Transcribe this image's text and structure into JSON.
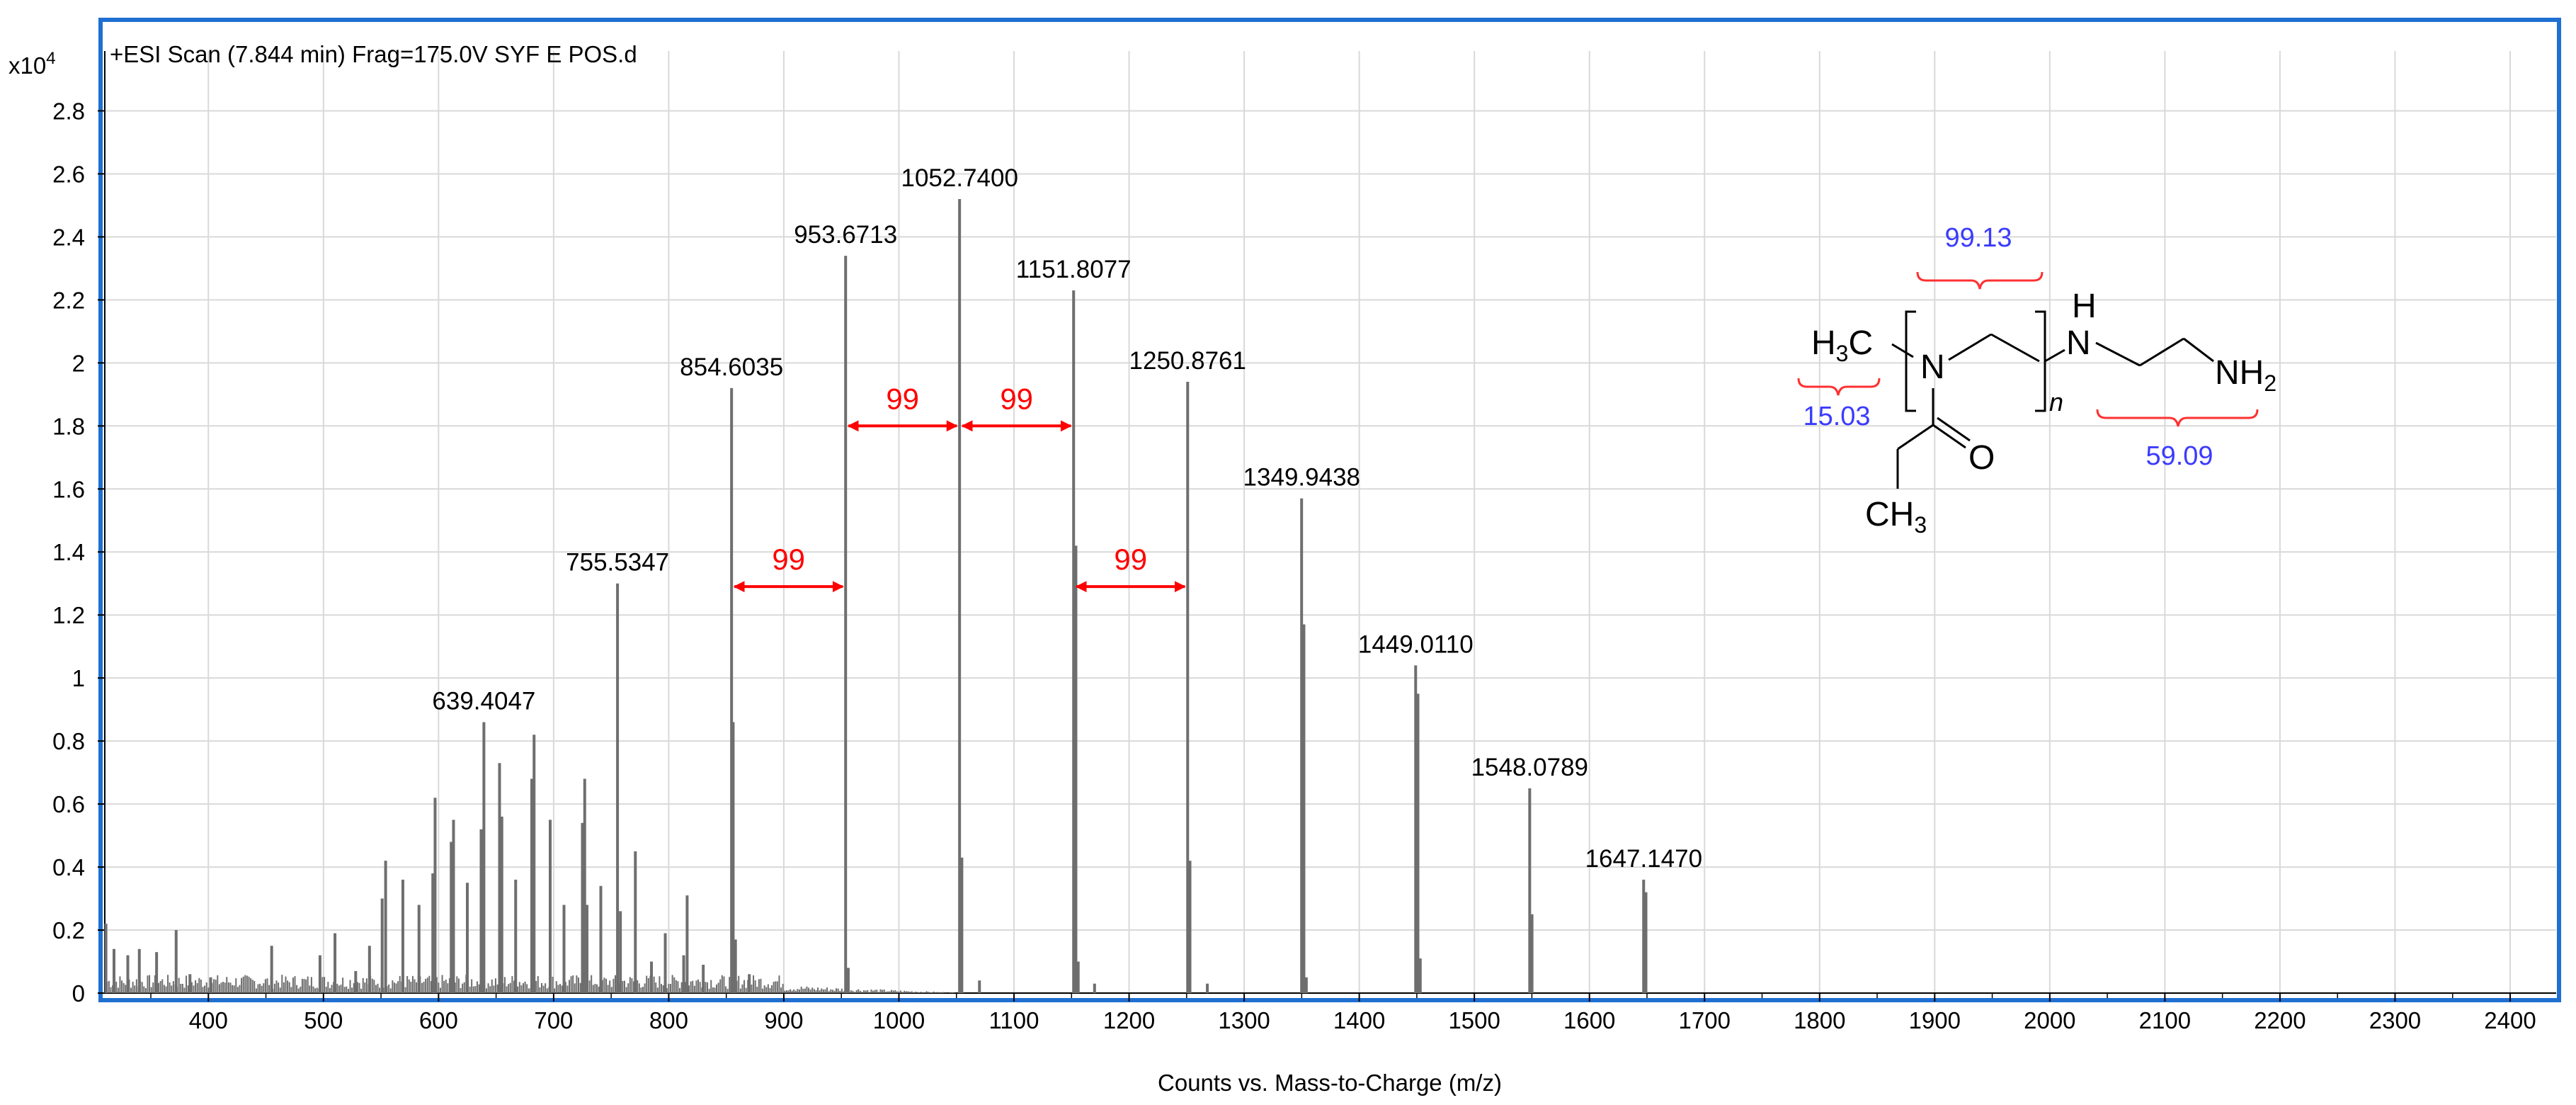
{
  "chart_data": {
    "type": "bar",
    "title": "+ESI Scan (7.844 min) Frag=175.0V SYF E POS.d",
    "y_multiplier_label": "x10",
    "y_multiplier_exp": "4",
    "xlabel": "Counts vs. Mass-to-Charge (m/z)",
    "ylabel": "",
    "xlim": [
      310,
      2440
    ],
    "ylim": [
      0,
      2.9
    ],
    "x_ticks": [
      400,
      500,
      600,
      700,
      800,
      900,
      1000,
      1100,
      1200,
      1300,
      1400,
      1500,
      1600,
      1700,
      1800,
      1900,
      2000,
      2100,
      2200,
      2300,
      2400
    ],
    "y_ticks": [
      0,
      0.2,
      0.4,
      0.6,
      0.8,
      1,
      1.2,
      1.4,
      1.6,
      1.8,
      2,
      2.2,
      2.4,
      2.6,
      2.8
    ],
    "grid": true,
    "labeled_peaks": [
      {
        "mz": 639.4047,
        "intensity": 0.86,
        "label": "639.4047"
      },
      {
        "mz": 755.5347,
        "intensity": 1.3,
        "label": "755.5347"
      },
      {
        "mz": 854.6035,
        "intensity": 1.92,
        "label": "854.6035"
      },
      {
        "mz": 953.6713,
        "intensity": 2.34,
        "label": "953.6713"
      },
      {
        "mz": 1052.74,
        "intensity": 2.52,
        "label": "1052.7400"
      },
      {
        "mz": 1151.8077,
        "intensity": 2.23,
        "label": "1151.8077"
      },
      {
        "mz": 1250.8761,
        "intensity": 1.94,
        "label": "1250.8761"
      },
      {
        "mz": 1349.9438,
        "intensity": 1.57,
        "label": "1349.9438"
      },
      {
        "mz": 1449.011,
        "intensity": 1.04,
        "label": "1449.0110"
      },
      {
        "mz": 1548.0789,
        "intensity": 0.65,
        "label": "1548.0789"
      },
      {
        "mz": 1647.147,
        "intensity": 0.36,
        "label": "1647.1470"
      }
    ],
    "peaks": [
      {
        "mz": 311,
        "intensity": 0.22
      },
      {
        "mz": 318,
        "intensity": 0.14
      },
      {
        "mz": 330,
        "intensity": 0.12
      },
      {
        "mz": 340,
        "intensity": 0.14
      },
      {
        "mz": 355,
        "intensity": 0.13
      },
      {
        "mz": 372,
        "intensity": 0.2
      },
      {
        "mz": 384,
        "intensity": 0.06
      },
      {
        "mz": 402,
        "intensity": 0.05
      },
      {
        "mz": 455,
        "intensity": 0.15
      },
      {
        "mz": 497,
        "intensity": 0.12
      },
      {
        "mz": 510,
        "intensity": 0.19
      },
      {
        "mz": 528,
        "intensity": 0.07
      },
      {
        "mz": 540,
        "intensity": 0.15
      },
      {
        "mz": 551,
        "intensity": 0.3
      },
      {
        "mz": 554,
        "intensity": 0.42
      },
      {
        "mz": 569,
        "intensity": 0.36
      },
      {
        "mz": 583,
        "intensity": 0.28
      },
      {
        "mz": 595,
        "intensity": 0.38
      },
      {
        "mz": 597,
        "intensity": 0.62
      },
      {
        "mz": 611,
        "intensity": 0.48
      },
      {
        "mz": 613,
        "intensity": 0.55
      },
      {
        "mz": 625,
        "intensity": 0.35
      },
      {
        "mz": 637,
        "intensity": 0.52
      },
      {
        "mz": 639.4,
        "intensity": 0.86
      },
      {
        "mz": 655,
        "intensity": 0.56
      },
      {
        "mz": 653,
        "intensity": 0.73
      },
      {
        "mz": 667,
        "intensity": 0.36
      },
      {
        "mz": 681,
        "intensity": 0.68
      },
      {
        "mz": 683,
        "intensity": 0.82
      },
      {
        "mz": 697,
        "intensity": 0.55
      },
      {
        "mz": 709,
        "intensity": 0.28
      },
      {
        "mz": 725,
        "intensity": 0.54
      },
      {
        "mz": 727,
        "intensity": 0.68
      },
      {
        "mz": 729,
        "intensity": 0.28
      },
      {
        "mz": 741,
        "intensity": 0.34
      },
      {
        "mz": 755.5,
        "intensity": 1.3
      },
      {
        "mz": 758,
        "intensity": 0.26
      },
      {
        "mz": 771,
        "intensity": 0.45
      },
      {
        "mz": 785,
        "intensity": 0.1
      },
      {
        "mz": 797,
        "intensity": 0.19
      },
      {
        "mz": 813,
        "intensity": 0.12
      },
      {
        "mz": 816,
        "intensity": 0.31
      },
      {
        "mz": 830,
        "intensity": 0.09
      },
      {
        "mz": 854.6,
        "intensity": 1.92
      },
      {
        "mz": 856,
        "intensity": 0.86
      },
      {
        "mz": 858,
        "intensity": 0.17
      },
      {
        "mz": 870,
        "intensity": 0.06
      },
      {
        "mz": 953.7,
        "intensity": 2.34
      },
      {
        "mz": 956,
        "intensity": 0.08
      },
      {
        "mz": 1052.7,
        "intensity": 2.52
      },
      {
        "mz": 1054.7,
        "intensity": 0.43
      },
      {
        "mz": 1070,
        "intensity": 0.04
      },
      {
        "mz": 1151.8,
        "intensity": 2.23
      },
      {
        "mz": 1153.8,
        "intensity": 1.42
      },
      {
        "mz": 1155.8,
        "intensity": 0.1
      },
      {
        "mz": 1170,
        "intensity": 0.03
      },
      {
        "mz": 1250.9,
        "intensity": 1.94
      },
      {
        "mz": 1252.9,
        "intensity": 0.42
      },
      {
        "mz": 1268,
        "intensity": 0.03
      },
      {
        "mz": 1349.9,
        "intensity": 1.57
      },
      {
        "mz": 1351.9,
        "intensity": 1.17
      },
      {
        "mz": 1354,
        "intensity": 0.05
      },
      {
        "mz": 1449.0,
        "intensity": 1.04
      },
      {
        "mz": 1451.0,
        "intensity": 0.95
      },
      {
        "mz": 1453.0,
        "intensity": 0.11
      },
      {
        "mz": 1548.1,
        "intensity": 0.65
      },
      {
        "mz": 1550.1,
        "intensity": 0.25
      },
      {
        "mz": 1647.1,
        "intensity": 0.36
      },
      {
        "mz": 1649.1,
        "intensity": 0.32
      }
    ],
    "annotations": [
      {
        "type": "arrow",
        "from_mz": 854.6,
        "to_mz": 953.7,
        "at": 1.29,
        "label": "99"
      },
      {
        "type": "arrow",
        "from_mz": 953.7,
        "to_mz": 1052.7,
        "at": 1.8,
        "label": "99"
      },
      {
        "type": "arrow",
        "from_mz": 1052.7,
        "to_mz": 1151.8,
        "at": 1.8,
        "label": "99"
      },
      {
        "type": "arrow",
        "from_mz": 1151.8,
        "to_mz": 1250.9,
        "at": 1.29,
        "label": "99"
      }
    ]
  },
  "structure": {
    "h3c": "H3C",
    "n": "N",
    "h": "H",
    "nh2": "NH2",
    "o": "O",
    "ch3": "CH3",
    "repeat": "n",
    "mass_repeat": "99.13",
    "mass_end1": "15.03",
    "mass_end2": "59.09"
  },
  "colors": {
    "frame": "#1f6fd1",
    "bars": "#6e6e6e",
    "grid": "#d9d9d9",
    "arrow": "#ff0000",
    "mass": "#3b3bff",
    "brace": "#ff0000"
  }
}
